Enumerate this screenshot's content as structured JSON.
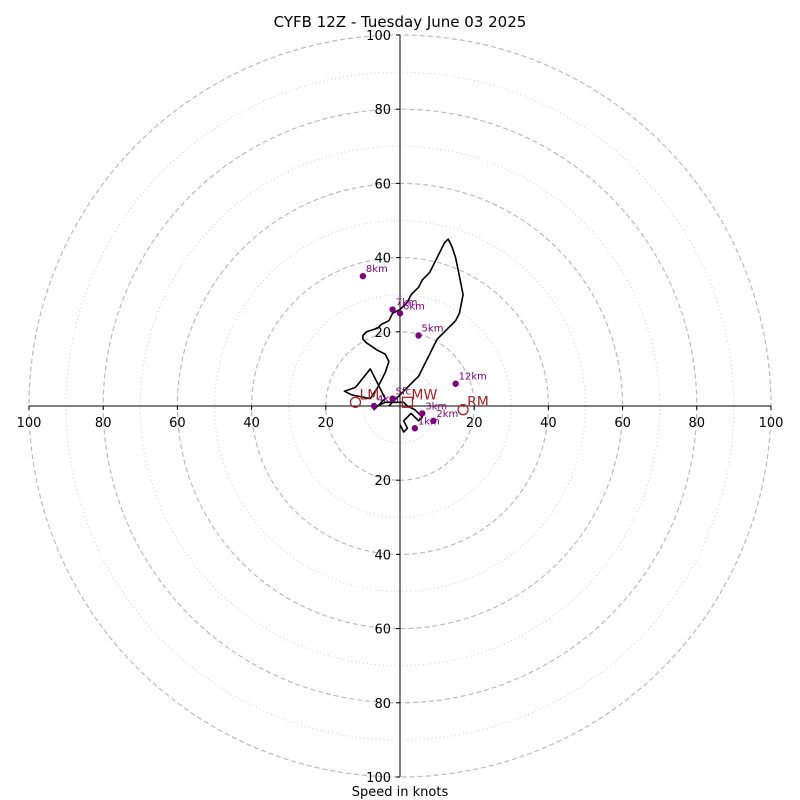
{
  "chart_data": {
    "type": "hodograph",
    "title": "CYFB 12Z - Tuesday June 03 2025",
    "xlabel": "Speed in knots",
    "ylabel": "",
    "xlim": [
      -100,
      100
    ],
    "ylim": [
      -100,
      100
    ],
    "ring_values_dashed": [
      20,
      40,
      60,
      80,
      100
    ],
    "ring_values_dotted": [
      10,
      30,
      50,
      70,
      90
    ],
    "x_tick_labels": [
      "100",
      "80",
      "60",
      "40",
      "20",
      "20",
      "40",
      "60",
      "80",
      "100"
    ],
    "x_tick_values": [
      -100,
      -80,
      -60,
      -40,
      -20,
      20,
      40,
      60,
      80,
      100
    ],
    "y_tick_labels": [
      "100",
      "80",
      "60",
      "40",
      "20",
      "20",
      "40",
      "60",
      "80",
      "100"
    ],
    "y_tick_values": [
      100,
      80,
      60,
      40,
      20,
      -20,
      -40,
      -60,
      -80,
      -100
    ],
    "grid": true,
    "colors": {
      "trace": "#000000",
      "height_markers": "#800080",
      "storm_motion": "#b22222",
      "grid": "#bbbbbb"
    },
    "trace": {
      "u": [
        0,
        1,
        2,
        1,
        3,
        4,
        5,
        6,
        4,
        2,
        1,
        -4,
        -6,
        -7,
        -4,
        -8,
        -12,
        -15,
        -13,
        -8,
        -6,
        -4,
        -3,
        -4,
        -6,
        -9,
        -10,
        -10,
        -9,
        -6,
        -5,
        -3,
        -2,
        0,
        2,
        3,
        5,
        6,
        8,
        9,
        10,
        11,
        12,
        13,
        14,
        15,
        16,
        17,
        16,
        15,
        14,
        13,
        12,
        11,
        10,
        9,
        8,
        7,
        6,
        5,
        4,
        3,
        2,
        1,
        0,
        -1,
        -2,
        -3
      ],
      "v": [
        -5,
        -7,
        -6,
        -4,
        -2,
        -3,
        -4,
        -3,
        -1,
        0,
        1,
        1,
        0,
        -1,
        2,
        10,
        5,
        4,
        3,
        2,
        5,
        9,
        12,
        14,
        15,
        17,
        18,
        19,
        20,
        21,
        22,
        23,
        25,
        26,
        28,
        30,
        32,
        34,
        36,
        38,
        40,
        42,
        44,
        45,
        43,
        40,
        35,
        30,
        25,
        23,
        22,
        21,
        20,
        19,
        18,
        16,
        14,
        12,
        10,
        8,
        7,
        6,
        5,
        4,
        3,
        2,
        1,
        0
      ]
    },
    "height_markers": [
      {
        "label": "1km",
        "u": 4,
        "v": -6
      },
      {
        "label": "2km",
        "u": 9,
        "v": -4
      },
      {
        "label": "3km",
        "u": 6,
        "v": -2
      },
      {
        "label": "4km",
        "u": -7,
        "v": 0
      },
      {
        "label": "5km",
        "u": 5,
        "v": 19
      },
      {
        "label": "7km",
        "u": -2,
        "v": 26
      },
      {
        "label": "6km",
        "u": 0,
        "v": 25
      },
      {
        "label": "8km",
        "u": -10,
        "v": 35
      },
      {
        "label": "12km",
        "u": 15,
        "v": 6
      },
      {
        "label": "Sfc",
        "u": -2,
        "v": 2
      }
    ],
    "storm_motion": [
      {
        "label": "LM",
        "u": -12,
        "v": 1,
        "shape": "circle"
      },
      {
        "label": "MW",
        "u": 2,
        "v": 1,
        "shape": "square"
      },
      {
        "label": "RM",
        "u": 17,
        "v": -1,
        "shape": "circle"
      }
    ]
  }
}
